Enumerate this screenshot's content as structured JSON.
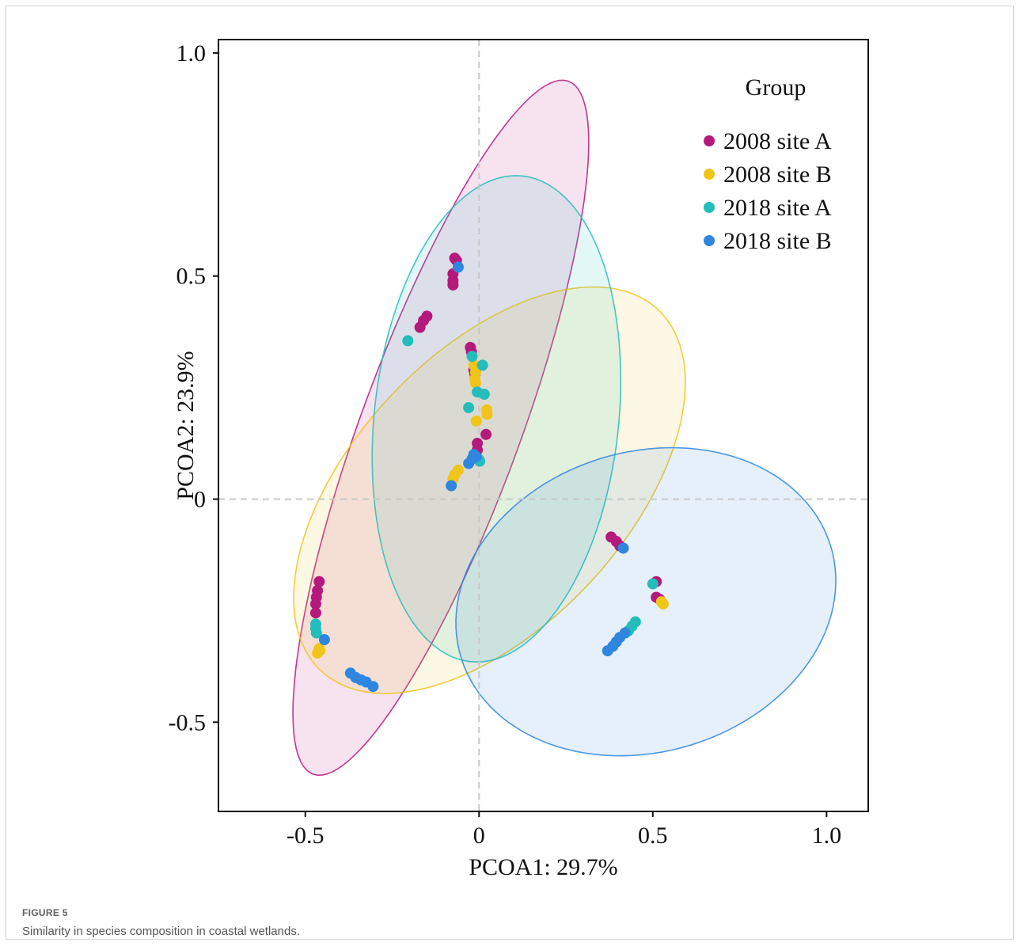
{
  "figure": {
    "label": "FIGURE 5",
    "caption": "Similarity in species composition in coastal wetlands."
  },
  "chart_data": {
    "type": "scatter",
    "xlabel": "PCOA1: 29.7%",
    "ylabel": "PCOA2: 23.9%",
    "xlim": [
      -0.75,
      1.12
    ],
    "ylim": [
      -0.7,
      1.03
    ],
    "xticks": [
      -0.5,
      0,
      0.5,
      1.0
    ],
    "xtick_labels": [
      "-0.5",
      "0",
      "0.5",
      "1.0"
    ],
    "yticks": [
      -0.5,
      0,
      0.5,
      1.0
    ],
    "ytick_labels": [
      "-0.5",
      "0",
      "0.5",
      "1.0"
    ],
    "reference_lines": {
      "x": 0,
      "y": 0
    },
    "legend": {
      "title": "Group",
      "position": "top-right"
    },
    "series": [
      {
        "name": "2008 site A",
        "color": "#b5197c",
        "ellipse": {
          "cx": -0.11,
          "cy": 0.16,
          "a": 0.86,
          "b": 0.22,
          "angle_deg": 64
        },
        "points": [
          [
            -0.07,
            0.54
          ],
          [
            -0.065,
            0.535
          ],
          [
            -0.075,
            0.505
          ],
          [
            -0.075,
            0.49
          ],
          [
            -0.075,
            0.48
          ],
          [
            -0.15,
            0.41
          ],
          [
            -0.16,
            0.4
          ],
          [
            -0.17,
            0.385
          ],
          [
            -0.025,
            0.34
          ],
          [
            -0.022,
            0.33
          ],
          [
            -0.015,
            0.29
          ],
          [
            -0.012,
            0.28
          ],
          [
            0.02,
            0.145
          ],
          [
            -0.005,
            0.125
          ],
          [
            -0.005,
            0.11
          ],
          [
            -0.01,
            0.1
          ],
          [
            -0.46,
            -0.185
          ],
          [
            -0.465,
            -0.205
          ],
          [
            -0.468,
            -0.22
          ],
          [
            -0.47,
            -0.235
          ],
          [
            -0.47,
            -0.255
          ],
          [
            0.38,
            -0.085
          ],
          [
            0.395,
            -0.095
          ],
          [
            0.405,
            -0.105
          ],
          [
            0.51,
            -0.185
          ],
          [
            0.51,
            -0.22
          ],
          [
            0.52,
            -0.225
          ]
        ]
      },
      {
        "name": "2008 site B",
        "color": "#f0c419",
        "ellipse": {
          "cx": 0.03,
          "cy": 0.02,
          "a": 0.64,
          "b": 0.34,
          "angle_deg": 34
        },
        "points": [
          [
            -0.015,
            0.3
          ],
          [
            -0.01,
            0.285
          ],
          [
            -0.012,
            0.27
          ],
          [
            -0.01,
            0.26
          ],
          [
            0.022,
            0.2
          ],
          [
            0.023,
            0.19
          ],
          [
            -0.008,
            0.175
          ],
          [
            -0.06,
            0.065
          ],
          [
            -0.07,
            0.055
          ],
          [
            -0.075,
            0.045
          ],
          [
            -0.46,
            -0.335
          ],
          [
            -0.465,
            -0.345
          ],
          [
            -0.458,
            -0.34
          ],
          [
            0.525,
            -0.23
          ],
          [
            0.53,
            -0.235
          ]
        ]
      },
      {
        "name": "2018 site A",
        "color": "#23bdbb",
        "ellipse": {
          "cx": 0.05,
          "cy": 0.18,
          "a": 0.55,
          "b": 0.35,
          "angle_deg": 80
        },
        "points": [
          [
            -0.205,
            0.355
          ],
          [
            -0.02,
            0.32
          ],
          [
            0.01,
            0.3
          ],
          [
            -0.005,
            0.24
          ],
          [
            0.015,
            0.235
          ],
          [
            -0.03,
            0.205
          ],
          [
            -0.002,
            0.09
          ],
          [
            0.002,
            0.085
          ],
          [
            -0.47,
            -0.28
          ],
          [
            -0.47,
            -0.29
          ],
          [
            -0.468,
            -0.3
          ],
          [
            0.45,
            -0.275
          ],
          [
            0.44,
            -0.285
          ],
          [
            0.43,
            -0.295
          ],
          [
            0.5,
            -0.19
          ]
        ]
      },
      {
        "name": "2018 site B",
        "color": "#2e86de",
        "ellipse": {
          "cx": 0.48,
          "cy": -0.23,
          "a": 0.55,
          "b": 0.34,
          "angle_deg": 8
        },
        "points": [
          [
            -0.06,
            0.52
          ],
          [
            -0.015,
            0.1
          ],
          [
            -0.02,
            0.09
          ],
          [
            -0.03,
            0.08
          ],
          [
            -0.008,
            0.095
          ],
          [
            -0.08,
            0.03
          ],
          [
            -0.445,
            -0.315
          ],
          [
            -0.37,
            -0.39
          ],
          [
            -0.355,
            -0.4
          ],
          [
            -0.34,
            -0.405
          ],
          [
            -0.325,
            -0.41
          ],
          [
            -0.305,
            -0.42
          ],
          [
            0.415,
            -0.11
          ],
          [
            0.37,
            -0.34
          ],
          [
            0.385,
            -0.33
          ],
          [
            0.395,
            -0.32
          ],
          [
            0.405,
            -0.31
          ],
          [
            0.42,
            -0.3
          ]
        ]
      }
    ]
  }
}
